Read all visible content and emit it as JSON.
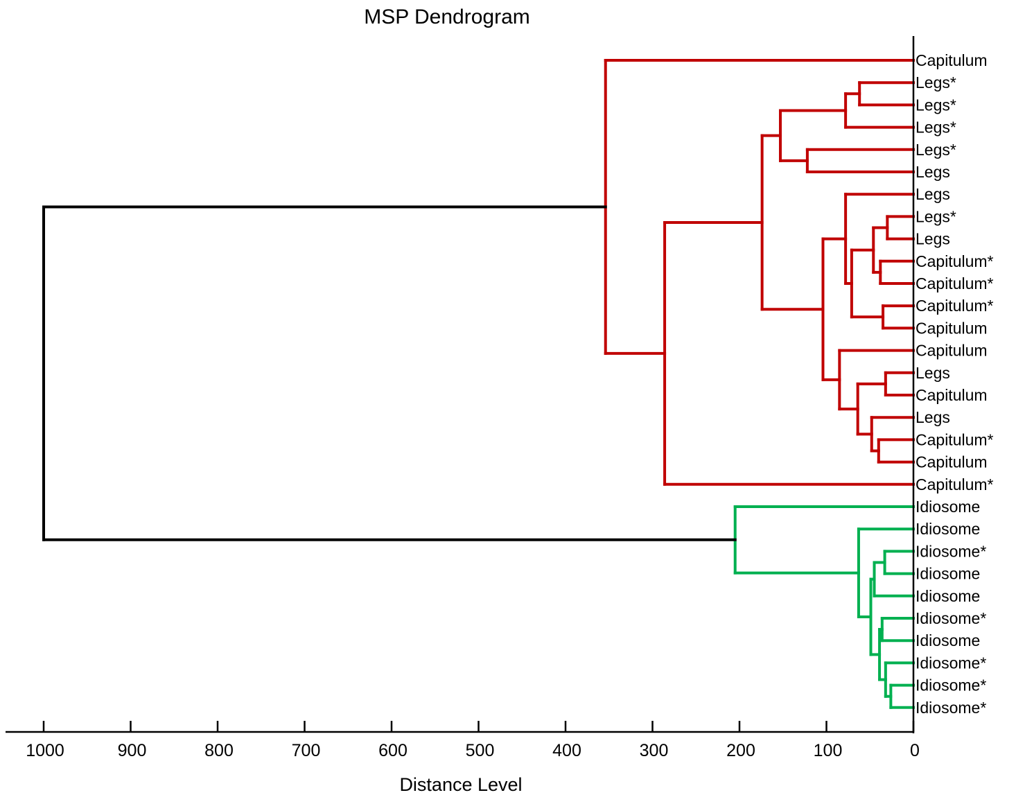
{
  "chart_data": {
    "type": "dendrogram",
    "title": "MSP Dendrogram",
    "xlabel": "Distance Level",
    "xlim": [
      1000,
      0
    ],
    "xticks": [
      1000,
      900,
      800,
      700,
      600,
      500,
      400,
      300,
      200,
      100,
      0
    ],
    "colors": {
      "root": "#000000",
      "cluster_a": "#c00000",
      "cluster_b": "#00b050"
    },
    "leaves": [
      "Capitulum",
      "Legs*",
      "Legs*",
      "Legs*",
      "Legs*",
      "Legs",
      "Legs",
      "Legs*",
      "Legs",
      "Capitulum*",
      "Capitulum*",
      "Capitulum*",
      "Capitulum",
      "Capitulum",
      "Legs",
      "Capitulum",
      "Legs",
      "Capitulum*",
      "Capitulum",
      "Capitulum*",
      "Idiosome",
      "Idiosome",
      "Idiosome*",
      "Idiosome",
      "Idiosome",
      "Idiosome*",
      "Idiosome",
      "Idiosome*",
      "Idiosome*",
      "Idiosome*"
    ],
    "merges": [
      {
        "id": "m1",
        "children": [
          "L1",
          "L2"
        ],
        "distance": 62,
        "color": "cluster_a"
      },
      {
        "id": "m2",
        "children": [
          "m1",
          "L3"
        ],
        "distance": 78,
        "color": "cluster_a"
      },
      {
        "id": "m3",
        "children": [
          "L4",
          "L5"
        ],
        "distance": 122,
        "color": "cluster_a"
      },
      {
        "id": "m4",
        "children": [
          "m2",
          "m3"
        ],
        "distance": 153,
        "color": "cluster_a"
      },
      {
        "id": "m5",
        "children": [
          "L7",
          "L8"
        ],
        "distance": 30,
        "color": "cluster_a"
      },
      {
        "id": "m6",
        "children": [
          "L9",
          "L10"
        ],
        "distance": 38,
        "color": "cluster_a"
      },
      {
        "id": "m7",
        "children": [
          "m5",
          "m6"
        ],
        "distance": 46,
        "color": "cluster_a"
      },
      {
        "id": "m8",
        "children": [
          "L11",
          "L12"
        ],
        "distance": 35,
        "color": "cluster_a"
      },
      {
        "id": "m9",
        "children": [
          "m7",
          "m8"
        ],
        "distance": 71,
        "color": "cluster_a"
      },
      {
        "id": "m10",
        "children": [
          "L6",
          "m9"
        ],
        "distance": 78,
        "color": "cluster_a"
      },
      {
        "id": "m11",
        "children": [
          "L14",
          "L15"
        ],
        "distance": 32,
        "color": "cluster_a"
      },
      {
        "id": "m12",
        "children": [
          "L17",
          "L18"
        ],
        "distance": 40,
        "color": "cluster_a"
      },
      {
        "id": "m13",
        "children": [
          "L16",
          "m12"
        ],
        "distance": 48,
        "color": "cluster_a"
      },
      {
        "id": "m14",
        "children": [
          "m11",
          "m13"
        ],
        "distance": 64,
        "color": "cluster_a"
      },
      {
        "id": "m15",
        "children": [
          "L13",
          "m14"
        ],
        "distance": 85,
        "color": "cluster_a"
      },
      {
        "id": "m16",
        "children": [
          "m10",
          "m15"
        ],
        "distance": 104,
        "color": "cluster_a"
      },
      {
        "id": "m17",
        "children": [
          "m4",
          "m16"
        ],
        "distance": 174,
        "color": "cluster_a"
      },
      {
        "id": "m18",
        "children": [
          "m17",
          "L19"
        ],
        "distance": 286,
        "color": "cluster_a"
      },
      {
        "id": "m19",
        "children": [
          "L0",
          "m18"
        ],
        "distance": 354,
        "color": "cluster_a"
      },
      {
        "id": "m20",
        "children": [
          "L22",
          "L23"
        ],
        "distance": 33,
        "color": "cluster_b"
      },
      {
        "id": "m21",
        "children": [
          "m20",
          "L24"
        ],
        "distance": 45,
        "color": "cluster_b"
      },
      {
        "id": "m22",
        "children": [
          "L28",
          "L29"
        ],
        "distance": 26,
        "color": "cluster_b"
      },
      {
        "id": "m23",
        "children": [
          "L27",
          "m22"
        ],
        "distance": 32,
        "color": "cluster_b"
      },
      {
        "id": "m24",
        "children": [
          "L25",
          "L26"
        ],
        "distance": 36,
        "color": "cluster_b"
      },
      {
        "id": "m25",
        "children": [
          "m24",
          "m23"
        ],
        "distance": 39,
        "color": "cluster_b"
      },
      {
        "id": "m26",
        "children": [
          "m21",
          "m25"
        ],
        "distance": 49,
        "color": "cluster_b"
      },
      {
        "id": "m27",
        "children": [
          "L21",
          "m26"
        ],
        "distance": 63,
        "color": "cluster_b"
      },
      {
        "id": "m28",
        "children": [
          "L20",
          "m27"
        ],
        "distance": 205,
        "color": "cluster_b"
      },
      {
        "id": "m29",
        "children": [
          "m19",
          "m28"
        ],
        "distance": 1000,
        "color": "root"
      }
    ]
  }
}
